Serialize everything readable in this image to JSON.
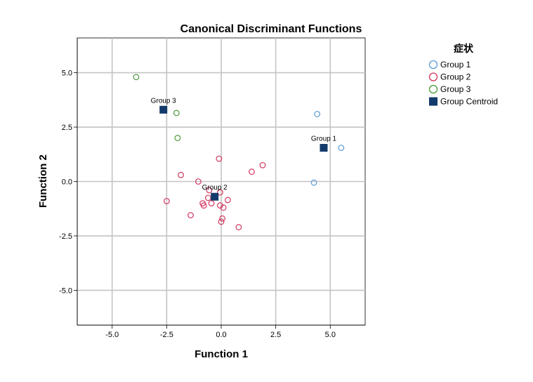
{
  "chart_data": {
    "type": "scatter",
    "title": "Canonical Discriminant Functions",
    "xlabel": "Function 1",
    "ylabel": "Function 2",
    "xlim": [
      -6.6,
      6.6
    ],
    "ylim": [
      -6.6,
      6.6
    ],
    "x_ticks": [
      -5.0,
      -2.5,
      0.0,
      2.5,
      5.0
    ],
    "y_ticks": [
      5.0,
      2.5,
      0.0,
      -2.5,
      -5.0
    ],
    "x_tick_labels": [
      "-5.0",
      "-2.5",
      "0.0",
      "2.5",
      "5.0"
    ],
    "y_tick_labels": [
      "5.0",
      "2.5",
      "0.0",
      "-2.5",
      "-5.0"
    ],
    "grid": true,
    "legend": {
      "title": "症状",
      "placement": "right",
      "entries": [
        "Group 1",
        "Group 2",
        "Group 3",
        "Group Centroid"
      ]
    },
    "series": [
      {
        "name": "Group 1",
        "color": "#5b9bd5",
        "marker": "open-circle",
        "points": [
          [
            4.4,
            3.1
          ],
          [
            5.5,
            1.55
          ],
          [
            4.25,
            -0.05
          ]
        ]
      },
      {
        "name": "Group 2",
        "color": "#d4365e",
        "marker": "open-circle",
        "points": [
          [
            -0.1,
            1.05
          ],
          [
            1.9,
            0.75
          ],
          [
            1.4,
            0.45
          ],
          [
            -1.85,
            0.3
          ],
          [
            -1.05,
            0.0
          ],
          [
            -0.55,
            -0.4
          ],
          [
            -0.05,
            -0.5
          ],
          [
            -0.6,
            -0.75
          ],
          [
            -2.5,
            -0.9
          ],
          [
            0.3,
            -0.85
          ],
          [
            -0.85,
            -1.0
          ],
          [
            -0.8,
            -1.1
          ],
          [
            -0.45,
            -1.0
          ],
          [
            -0.05,
            -1.1
          ],
          [
            0.1,
            -1.2
          ],
          [
            -1.4,
            -1.55
          ],
          [
            0.05,
            -1.7
          ],
          [
            0.0,
            -1.85
          ],
          [
            0.8,
            -2.1
          ]
        ]
      },
      {
        "name": "Group 3",
        "color": "#4a9a3a",
        "marker": "open-circle",
        "points": [
          [
            -3.9,
            4.8
          ],
          [
            -2.05,
            3.15
          ],
          [
            -2.0,
            2.0
          ]
        ]
      },
      {
        "name": "Group Centroid",
        "color": "#123a6b",
        "marker": "filled-square",
        "points": [
          [
            4.7,
            1.55
          ],
          [
            -0.3,
            -0.7
          ],
          [
            -2.65,
            3.3
          ]
        ],
        "labels": [
          "Group 1",
          "Group 2",
          "Group 3"
        ]
      }
    ]
  }
}
